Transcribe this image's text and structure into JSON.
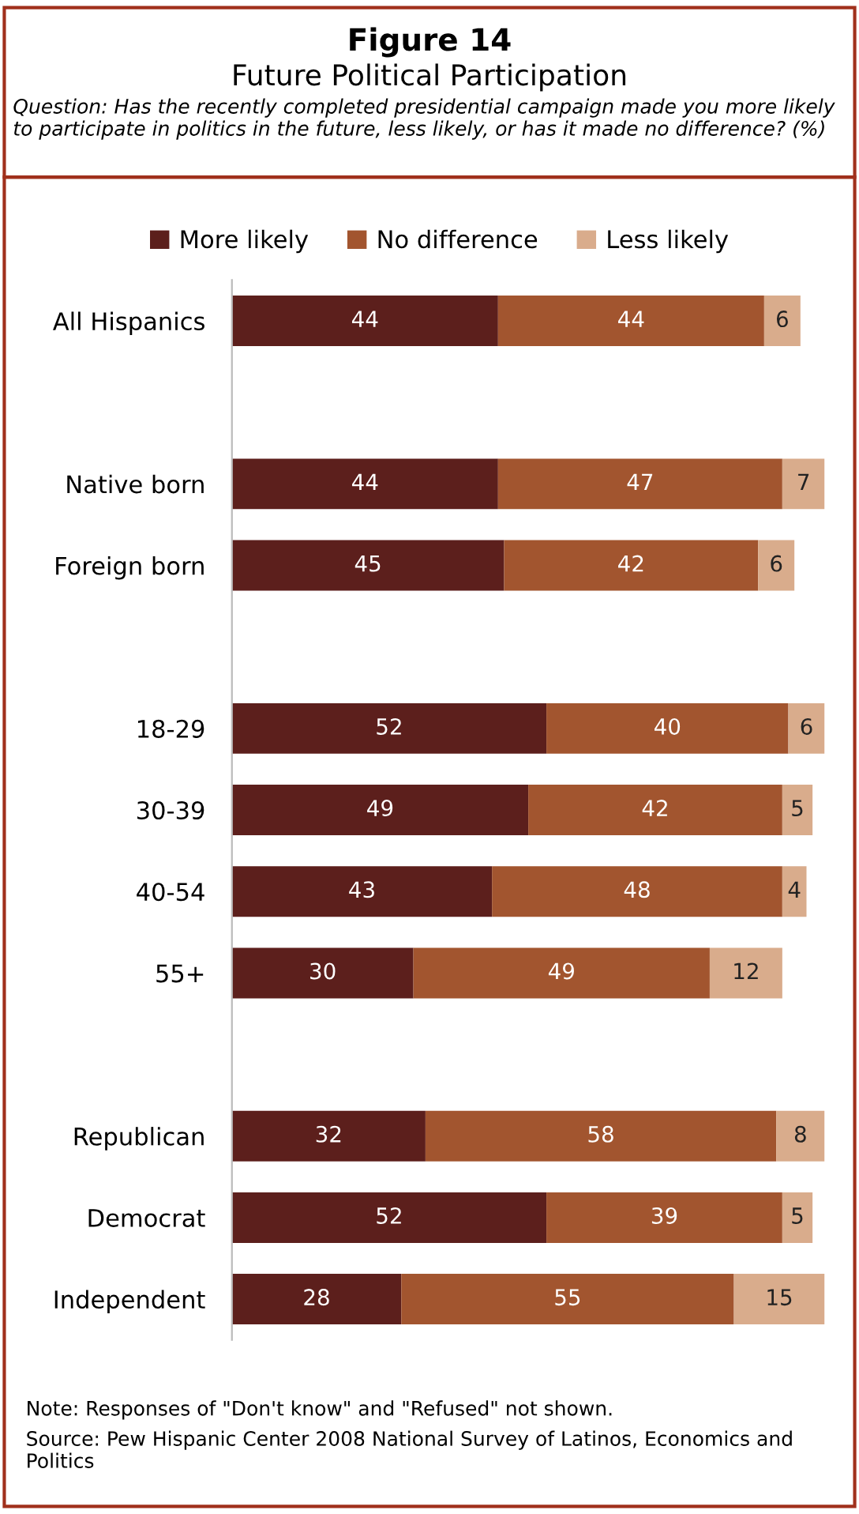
{
  "chart_data": {
    "type": "bar",
    "orientation": "horizontal",
    "stacked": true,
    "title": "Figure 14",
    "subtitle": "Future Political Participation",
    "annotations": [
      "Question: Has the recently completed presidential campaign made you more likely to participate in politics in the future, less likely, or has it made no difference? (%)",
      "Note: Responses of \"Don't know\" and \"Refused\" not shown.",
      "Source: Pew Hispanic Center 2008 National Survey of Latinos, Economics and Politics"
    ],
    "categories": [
      "All Hispanics",
      null,
      "Native born",
      "Foreign born",
      null,
      "18-29",
      "30-39",
      "40-54",
      "55+",
      null,
      "Republican",
      "Democrat",
      "Independent"
    ],
    "series": [
      {
        "name": "More likely",
        "color": "#5c1f1c",
        "values": [
          44,
          null,
          44,
          45,
          null,
          52,
          49,
          43,
          30,
          null,
          32,
          52,
          28
        ]
      },
      {
        "name": "No difference",
        "color": "#a2552f",
        "values": [
          44,
          null,
          47,
          42,
          null,
          40,
          42,
          48,
          49,
          null,
          58,
          39,
          55
        ]
      },
      {
        "name": "Less likely",
        "color": "#d9ac8c",
        "values": [
          6,
          null,
          7,
          6,
          null,
          6,
          5,
          4,
          12,
          null,
          8,
          5,
          15
        ]
      }
    ],
    "data_labels": true,
    "legend": "top",
    "grid": false,
    "tick_labels": "y"
  }
}
